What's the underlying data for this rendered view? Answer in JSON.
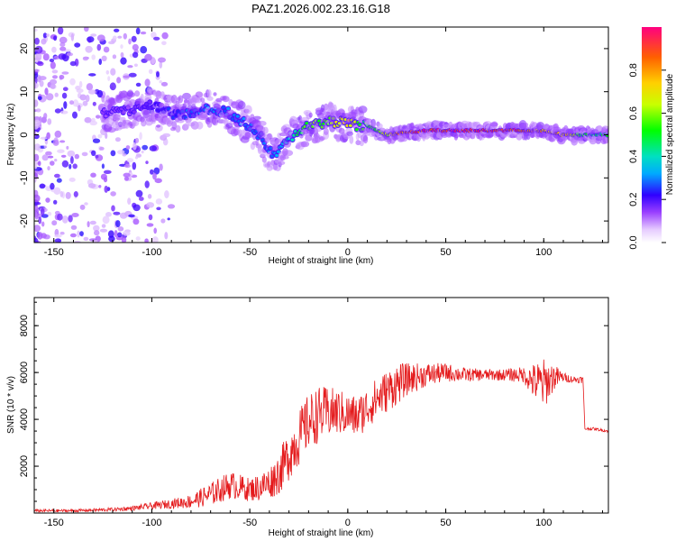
{
  "title": "PAZ1.2026.002.23.16.G18",
  "colors": {
    "snr_line": "#e41a1c",
    "axis": "#000000",
    "background": "#ffffff"
  },
  "chart_data": [
    {
      "type": "heatmap",
      "name": "spectrogram",
      "xlabel": "Height of straight line (km)",
      "ylabel": "Frequency (Hz)",
      "xlim": [
        -160,
        133
      ],
      "ylim": [
        -25,
        25
      ],
      "xticks": [
        -150,
        -100,
        -50,
        0,
        50,
        100
      ],
      "xtick_labels": [
        "-150",
        "-100",
        "-50",
        "0",
        "50",
        "100"
      ],
      "yticks": [
        -20,
        -10,
        0,
        10,
        20
      ],
      "ytick_labels": [
        "-20",
        "-10",
        "0",
        "10",
        "20"
      ],
      "ridge": {
        "x": [
          -120,
          -110,
          -100,
          -90,
          -80,
          -70,
          -60,
          -50,
          -45,
          -40,
          -35,
          -30,
          -25,
          -20,
          -10,
          -5,
          0,
          5,
          10,
          15,
          20,
          30,
          40,
          60,
          80,
          100,
          110,
          120,
          133
        ],
        "y": [
          5,
          6,
          7,
          5,
          5,
          6,
          5,
          2,
          0,
          -4,
          -4,
          -1,
          1,
          2,
          3,
          3,
          3,
          2,
          2,
          1,
          0,
          0.5,
          1,
          1,
          1,
          1,
          0,
          0,
          0
        ],
        "amplitude": [
          0.15,
          0.15,
          0.2,
          0.25,
          0.3,
          0.3,
          0.3,
          0.3,
          0.3,
          0.3,
          0.35,
          0.4,
          0.5,
          0.6,
          0.6,
          0.7,
          0.8,
          0.6,
          0.5,
          0.6,
          0.7,
          0.9,
          1.0,
          1.0,
          1.0,
          0.8,
          0.8,
          0.5,
          0.5
        ]
      },
      "colorbar": {
        "label": "Normalized spectral amplitude",
        "range": [
          0,
          1
        ],
        "ticks": [
          0,
          0.2,
          0.4,
          0.6,
          0.8
        ],
        "tick_labels": [
          "0.0",
          "0.2",
          "0.4",
          "0.6",
          "0.8"
        ]
      }
    },
    {
      "type": "line",
      "name": "snr",
      "xlabel": "Height of straight line (km)",
      "ylabel": "SNR (10 * v/v)",
      "xlim": [
        -160,
        133
      ],
      "ylim": [
        0,
        9200
      ],
      "xticks": [
        -150,
        -100,
        -50,
        0,
        50,
        100
      ],
      "xtick_labels": [
        "-150",
        "-100",
        "-50",
        "0",
        "50",
        "100"
      ],
      "yticks": [
        2000,
        4000,
        6000,
        8000
      ],
      "ytick_labels": [
        "2000",
        "4000",
        "6000",
        "8000"
      ],
      "series": [
        {
          "name": "SNR",
          "x": [
            -160,
            -140,
            -120,
            -110,
            -100,
            -90,
            -80,
            -70,
            -60,
            -50,
            -45,
            -40,
            -35,
            -30,
            -25,
            -20,
            -15,
            -10,
            -5,
            0,
            5,
            10,
            15,
            20,
            25,
            30,
            35,
            40,
            50,
            60,
            70,
            80,
            90,
            95,
            100,
            105,
            110,
            115,
            120,
            121,
            125,
            133
          ],
          "y": [
            100,
            100,
            150,
            200,
            300,
            400,
            500,
            800,
            1200,
            1000,
            1100,
            1300,
            1700,
            2500,
            3200,
            3900,
            4200,
            4300,
            4300,
            4200,
            4100,
            4500,
            4900,
            5200,
            5500,
            5700,
            5800,
            5900,
            6000,
            5900,
            5900,
            5900,
            5900,
            5600,
            5500,
            5800,
            5800,
            5700,
            5700,
            3600,
            3600,
            3500
          ],
          "amplitude": [
            60,
            60,
            80,
            100,
            150,
            200,
            300,
            500,
            600,
            500,
            600,
            700,
            900,
            1100,
            1200,
            1200,
            1200,
            1100,
            1000,
            900,
            900,
            900,
            900,
            900,
            900,
            700,
            600,
            500,
            400,
            300,
            250,
            250,
            350,
            800,
            1100,
            600,
            200,
            150,
            150,
            60,
            60,
            60
          ]
        }
      ]
    }
  ]
}
